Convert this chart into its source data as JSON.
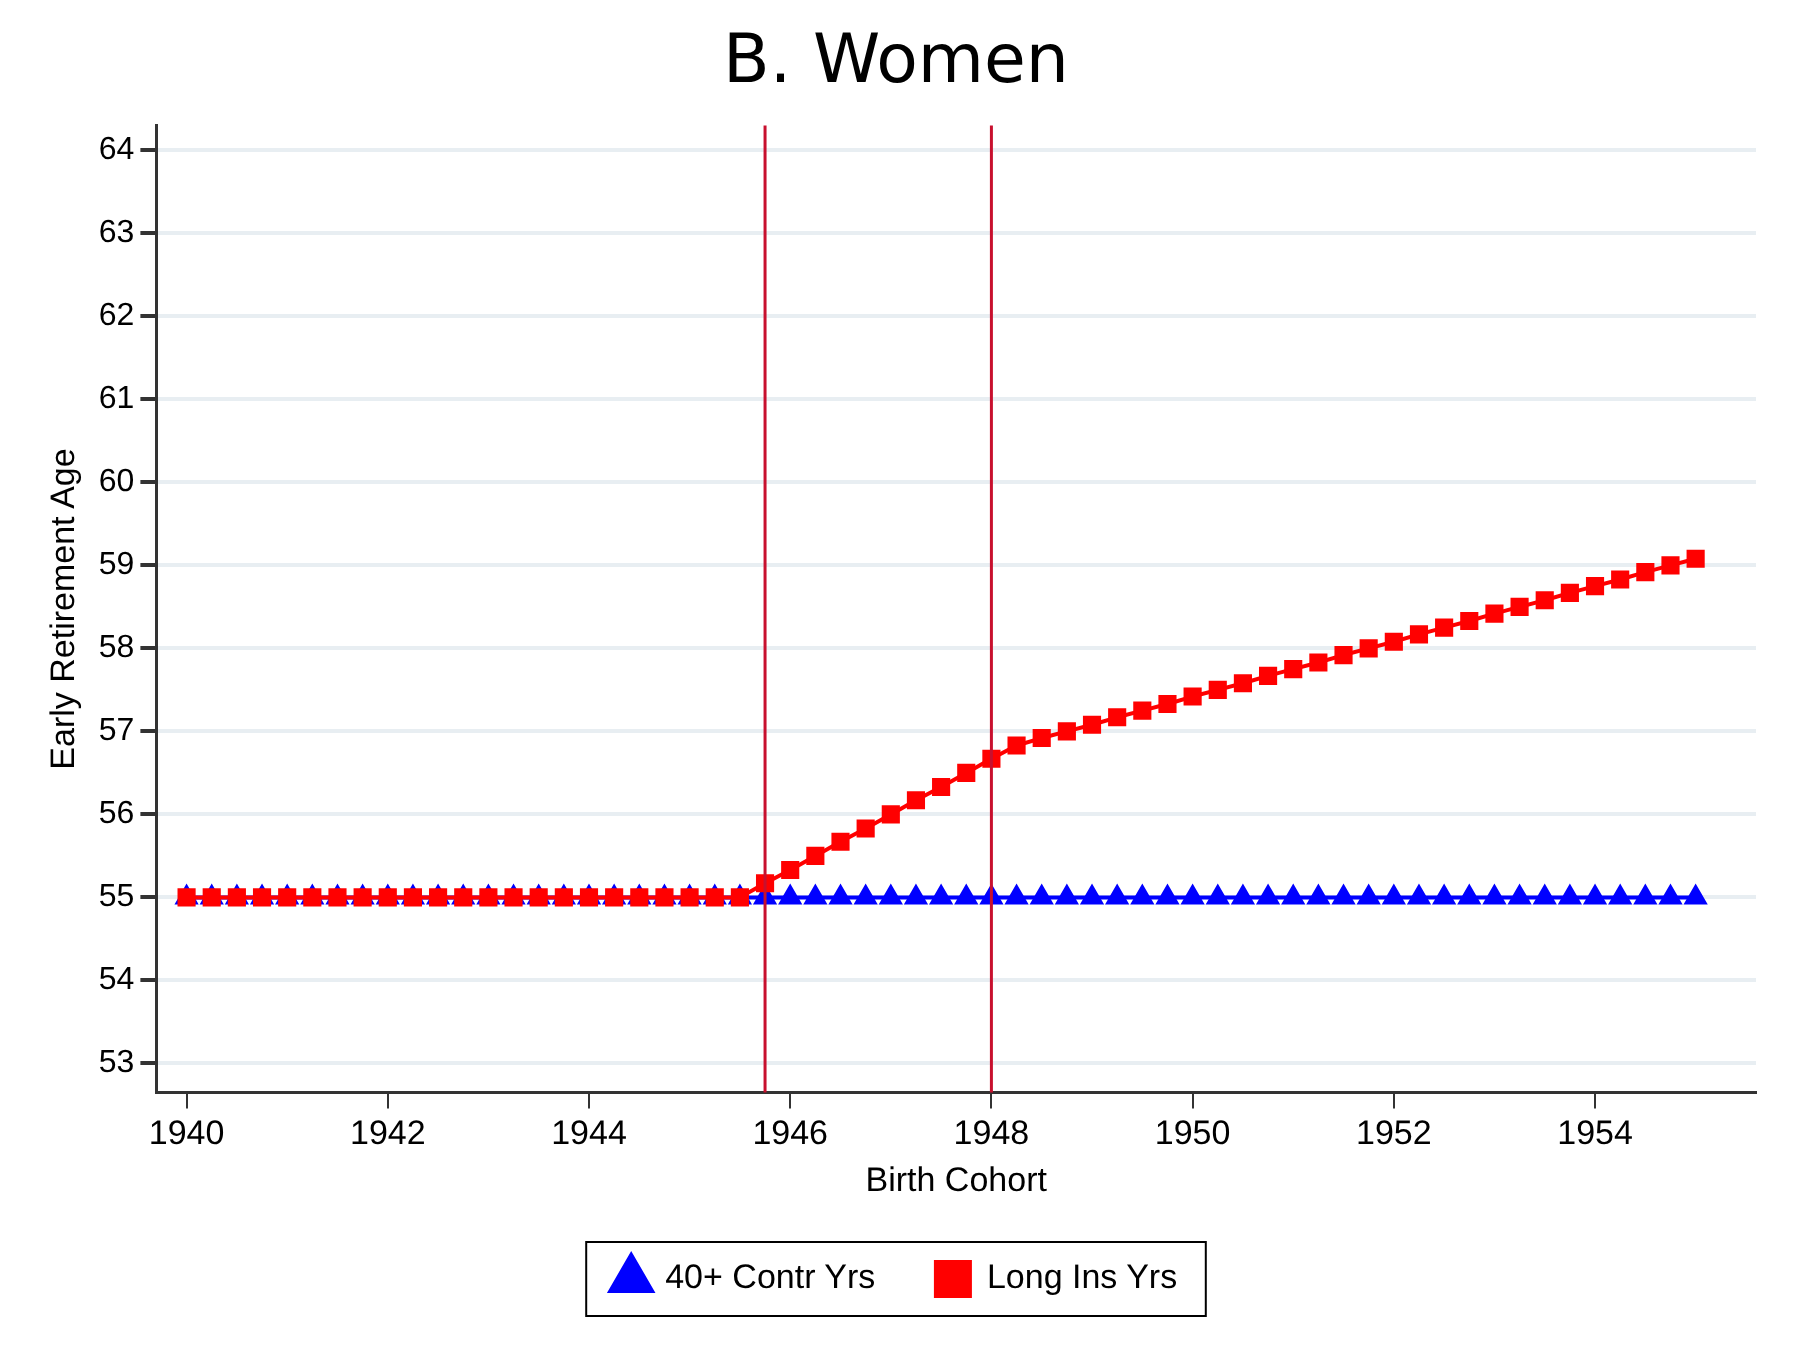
{
  "chart_data": {
    "type": "line",
    "title": "B. Women",
    "xlabel": "Birth Cohort",
    "ylabel": "Early Retirement Age",
    "x": [
      1940,
      1940.25,
      1940.5,
      1940.75,
      1941,
      1941.25,
      1941.5,
      1941.75,
      1942,
      1942.25,
      1942.5,
      1942.75,
      1943,
      1943.25,
      1943.5,
      1943.75,
      1944,
      1944.25,
      1944.5,
      1944.75,
      1945,
      1945.25,
      1945.5,
      1945.75,
      1946,
      1946.25,
      1946.5,
      1946.75,
      1947,
      1947.25,
      1947.5,
      1947.75,
      1948,
      1948.25,
      1948.5,
      1948.75,
      1949,
      1949.25,
      1949.5,
      1949.75,
      1950,
      1950.25,
      1950.5,
      1950.75,
      1951,
      1951.25,
      1951.5,
      1951.75,
      1952,
      1952.25,
      1952.5,
      1952.75,
      1953,
      1953.25,
      1953.5,
      1953.75,
      1954,
      1954.25,
      1954.5,
      1954.75,
      1955
    ],
    "series": [
      {
        "name": "40+ Contr Yrs",
        "color": "#0000ff",
        "marker": "triangle",
        "values": [
          55,
          55,
          55,
          55,
          55,
          55,
          55,
          55,
          55,
          55,
          55,
          55,
          55,
          55,
          55,
          55,
          55,
          55,
          55,
          55,
          55,
          55,
          55,
          55,
          55,
          55,
          55,
          55,
          55,
          55,
          55,
          55,
          55,
          55,
          55,
          55,
          55,
          55,
          55,
          55,
          55,
          55,
          55,
          55,
          55,
          55,
          55,
          55,
          55,
          55,
          55,
          55,
          55,
          55,
          55,
          55,
          55,
          55,
          55,
          55,
          55
        ]
      },
      {
        "name": "Long Ins Yrs",
        "color": "#ff0000",
        "marker": "square",
        "values": [
          55,
          55,
          55,
          55,
          55,
          55,
          55,
          55,
          55,
          55,
          55,
          55,
          55,
          55,
          55,
          55,
          55,
          55,
          55,
          55,
          55,
          55,
          55,
          55.17,
          55.33,
          55.5,
          55.67,
          55.83,
          56,
          56.17,
          56.33,
          56.5,
          56.67,
          56.83,
          56.92,
          57,
          57.08,
          57.17,
          57.25,
          57.33,
          57.42,
          57.5,
          57.58,
          57.67,
          57.75,
          57.83,
          57.92,
          58,
          58.08,
          58.17,
          58.25,
          58.33,
          58.42,
          58.5,
          58.58,
          58.67,
          58.75,
          58.83,
          58.92,
          59,
          59.08
        ]
      }
    ],
    "xlim": [
      1939.7,
      1955.6
    ],
    "xticks": [
      1940,
      1942,
      1944,
      1946,
      1948,
      1950,
      1952,
      1954
    ],
    "ylim": [
      52.65,
      64.3
    ],
    "yticks": [
      53,
      54,
      55,
      56,
      57,
      58,
      59,
      60,
      61,
      62,
      63,
      64
    ],
    "ref_lines": [
      {
        "axis": "x",
        "value": 1945.75,
        "color": "#c8102e"
      },
      {
        "axis": "x",
        "value": 1948,
        "color": "#c8102e"
      }
    ],
    "grid": "y",
    "legend": "bottom",
    "line_style": "solid"
  }
}
